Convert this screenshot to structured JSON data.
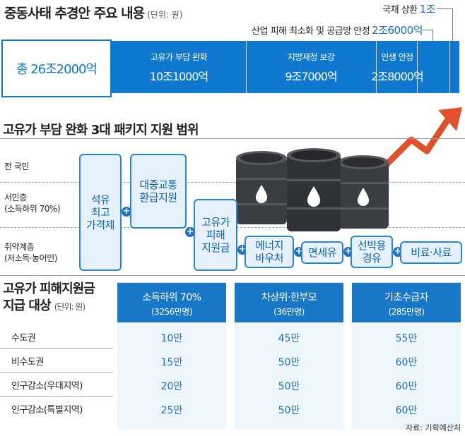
{
  "header": {
    "title": "중동사태 추경안 주요 내용",
    "unit": "(단위: 원)"
  },
  "callouts": {
    "debt": {
      "label": "국채 상환",
      "value": "1조"
    },
    "industry": {
      "label": "산업 피해 최소화 및 공급망 안정",
      "value": "2조6000억"
    }
  },
  "budget": {
    "total": "총 26조2000억",
    "segments": [
      {
        "label": "고유가 부담 완화",
        "value": "10조1000억"
      },
      {
        "label": "지방재정 보강",
        "value": "9조7000억"
      },
      {
        "label": "민생 안정",
        "value": "2조8000억"
      }
    ]
  },
  "packages": {
    "title": "고유가 부담 완화 3대 패키지 지원 범위",
    "rows": {
      "all": "전 국민",
      "mid1": "서민층",
      "mid2": "(소득하위 70%)",
      "low1": "취약계층",
      "low2": "(저소득·농어민)"
    },
    "items": {
      "oil_price": "석유\n최고\n가격제",
      "transit": "대중교통\n환급지원",
      "relief": "고유가\n피해\n지원금",
      "voucher": "에너지\n바우처",
      "tax": "면세유",
      "fuel": "선박용\n경유",
      "fert": "비료·사료"
    }
  },
  "table": {
    "title1": "고유가 피해지원금",
    "title2": "지급 대상",
    "unit": "(단위: 원)",
    "columns": [
      {
        "name": "소득하위 70%",
        "sub": "(3256만명)",
        "values": [
          "10만",
          "15만",
          "20만",
          "25만"
        ]
      },
      {
        "name": "차상위·한부모",
        "sub": "(36만명)",
        "values": [
          "45만",
          "50만",
          "50만",
          "50만"
        ]
      },
      {
        "name": "기초수급자",
        "sub": "(285만명)",
        "values": [
          "55만",
          "60만",
          "60만",
          "60만"
        ]
      }
    ],
    "regions": [
      "수도권",
      "비수도권",
      "인구감소(우대지역)",
      "인구감소(특별지역)"
    ]
  },
  "source": "자료: 기획예산처",
  "colors": {
    "accent": "#0f79cf",
    "arrow": "#e0502b",
    "barrel": "#3a3d42"
  },
  "icons": [
    "oil-barrel-icon",
    "rising-arrow-icon",
    "plus-icon"
  ]
}
